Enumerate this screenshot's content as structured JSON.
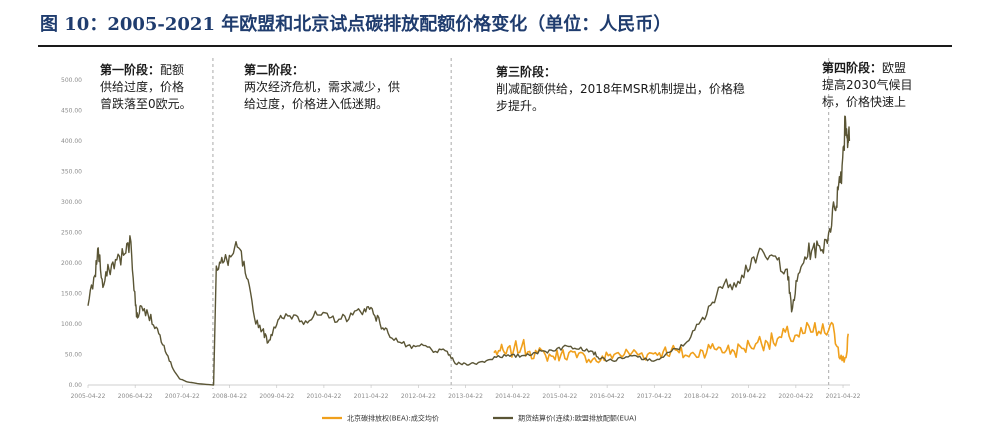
{
  "header": {
    "title": "图 10：2005-2021 年欧盟和北京试点碳排放配额价格变化（单位：人民币）"
  },
  "chart_data": {
    "type": "line",
    "ylim": [
      0,
      500
    ],
    "yticks": [
      "0.00",
      "50.00",
      "100.00",
      "150.00",
      "200.00",
      "250.00",
      "300.00",
      "350.00",
      "400.00",
      "450.00",
      "500.00"
    ],
    "xlim": [
      "2005-04-22",
      "2021-06-15"
    ],
    "xticks": [
      "2005-04-22",
      "2006-04-22",
      "2007-04-22",
      "2008-04-22",
      "2009-04-22",
      "2010-04-22",
      "2011-04-22",
      "2012-04-22",
      "2013-04-22",
      "2014-04-22",
      "2015-04-22",
      "2016-04-22",
      "2017-04-22",
      "2018-04-22",
      "2019-04-22",
      "2020-04-22",
      "2021-04-22"
    ],
    "grid": false,
    "legend_position": "bottom",
    "colors": {
      "beijing": "#f0a01c",
      "eua": "#5a5535",
      "divider": "#aaaaaa"
    },
    "series": [
      {
        "name": "北京碳排放权(BEA):成交均价",
        "x": [
          "2013-11-28",
          "2014-01-15",
          "2014-03-01",
          "2014-05-01",
          "2014-07-01",
          "2014-09-01",
          "2014-11-01",
          "2015-01-01",
          "2015-03-01",
          "2015-05-01",
          "2015-07-01",
          "2015-09-01",
          "2015-11-01",
          "2016-01-01",
          "2016-03-01",
          "2016-05-01",
          "2016-07-01",
          "2016-09-01",
          "2016-11-01",
          "2017-01-01",
          "2017-03-01",
          "2017-05-01",
          "2017-07-01",
          "2017-09-01",
          "2017-11-01",
          "2018-01-01",
          "2018-03-01",
          "2018-05-01",
          "2018-07-01",
          "2018-09-01",
          "2018-11-01",
          "2019-01-01",
          "2019-03-01",
          "2019-05-01",
          "2019-07-01",
          "2019-09-01",
          "2019-11-01",
          "2020-01-01",
          "2020-03-01",
          "2020-05-01",
          "2020-07-01",
          "2020-09-01",
          "2020-11-01",
          "2021-01-01",
          "2021-02-15",
          "2021-03-15",
          "2021-04-15",
          "2021-05-15",
          "2021-06-01"
        ],
        "values": [
          53,
          56,
          51,
          58,
          63,
          55,
          52,
          49,
          47,
          50,
          53,
          45,
          48,
          42,
          40,
          48,
          52,
          50,
          53,
          51,
          50,
          53,
          55,
          57,
          53,
          48,
          50,
          56,
          60,
          62,
          57,
          55,
          60,
          65,
          70,
          73,
          69,
          78,
          80,
          82,
          85,
          87,
          84,
          90,
          84,
          62,
          40,
          45,
          84
        ]
      },
      {
        "name": "期货结算价(连续):欧盟排放配额(EUA)",
        "x": [
          "2005-04-22",
          "2005-06-15",
          "2005-07-10",
          "2005-08-15",
          "2005-10-01",
          "2005-12-01",
          "2006-02-01",
          "2006-03-20",
          "2006-04-25",
          "2006-05-10",
          "2006-06-01",
          "2006-08-01",
          "2006-10-01",
          "2006-12-01",
          "2007-02-01",
          "2007-04-01",
          "2007-06-01",
          "2007-09-01",
          "2007-12-20",
          "2008-01-10",
          "2008-03-01",
          "2008-05-01",
          "2008-07-01",
          "2008-09-01",
          "2008-11-01",
          "2009-01-01",
          "2009-02-15",
          "2009-04-01",
          "2009-06-01",
          "2009-09-01",
          "2009-12-01",
          "2010-03-01",
          "2010-06-01",
          "2010-09-01",
          "2010-12-01",
          "2011-03-01",
          "2011-05-01",
          "2011-07-01",
          "2011-09-01",
          "2011-12-01",
          "2012-03-01",
          "2012-06-01",
          "2012-09-01",
          "2012-12-01",
          "2013-02-01",
          "2013-04-22",
          "2013-07-01",
          "2013-10-01",
          "2014-01-01",
          "2014-04-01",
          "2014-07-01",
          "2014-10-01",
          "2015-01-01",
          "2015-04-01",
          "2015-07-01",
          "2015-10-01",
          "2016-01-01",
          "2016-03-01",
          "2016-06-01",
          "2016-09-01",
          "2016-12-01",
          "2017-03-01",
          "2017-06-01",
          "2017-09-01",
          "2017-12-01",
          "2018-03-01",
          "2018-06-01",
          "2018-09-01",
          "2018-12-01",
          "2019-03-01",
          "2019-06-01",
          "2019-09-01",
          "2019-12-01",
          "2020-02-15",
          "2020-03-20",
          "2020-05-01",
          "2020-07-01",
          "2020-09-01",
          "2020-11-01",
          "2021-01-01",
          "2021-02-15",
          "2021-03-15",
          "2021-04-15",
          "2021-05-10",
          "2021-05-25",
          "2021-06-10"
        ],
        "values": [
          130,
          180,
          225,
          160,
          190,
          205,
          215,
          235,
          130,
          110,
          130,
          115,
          95,
          65,
          30,
          10,
          5,
          2,
          0,
          195,
          200,
          210,
          225,
          175,
          110,
          90,
          70,
          95,
          110,
          115,
          105,
          115,
          110,
          108,
          115,
          125,
          125,
          100,
          85,
          70,
          60,
          65,
          55,
          55,
          35,
          35,
          35,
          40,
          48,
          47,
          48,
          53,
          55,
          60,
          63,
          62,
          55,
          43,
          40,
          44,
          48,
          40,
          42,
          55,
          64,
          90,
          115,
          160,
          165,
          180,
          210,
          210,
          205,
          190,
          120,
          170,
          210,
          225,
          220,
          250,
          290,
          320,
          360,
          440,
          410,
          400
        ]
      }
    ],
    "annotations": [
      {
        "bold": "第一阶段：",
        "lines": [
          "配额",
          "供给过度，价格",
          "曾跌落至0欧元。"
        ]
      },
      {
        "bold": "第二阶段：",
        "lines": [
          "",
          "两次经济危机，需求减少，供",
          "给过度，价格进入低迷期。"
        ]
      },
      {
        "bold": "第三阶段：",
        "lines": [
          "",
          "削减配额供给，2018年MSR机制提出，价格稳",
          "步提升。"
        ]
      },
      {
        "bold": "第四阶段：",
        "lines": [
          "欧盟",
          "提高2030气候目",
          "标，价格快速上"
        ]
      }
    ],
    "phase_dividers": [
      "2007-12-15",
      "2013-01-01",
      "2021-01-01"
    ]
  }
}
